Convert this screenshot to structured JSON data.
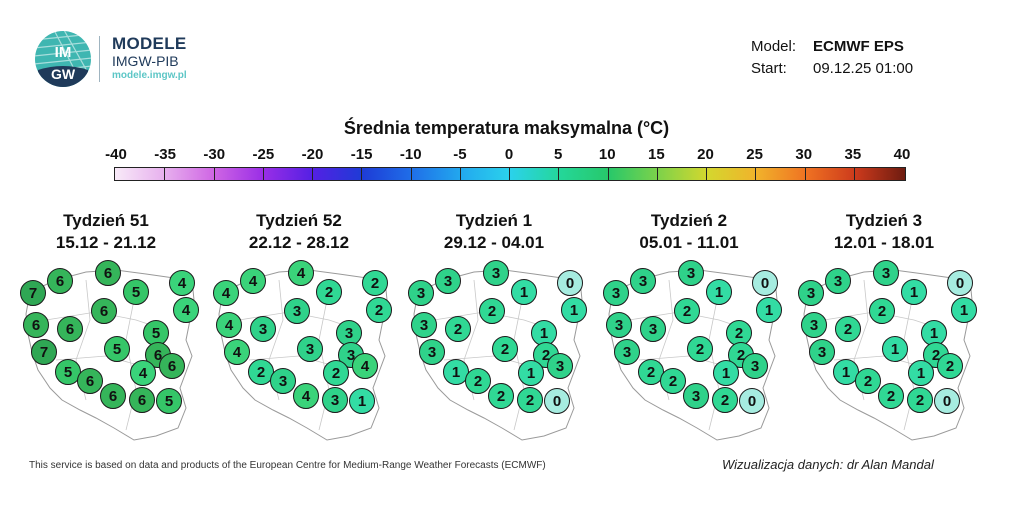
{
  "brand": {
    "name": "MODELE",
    "sub": "IMGW-PIB",
    "url": "modele.imgw.pl",
    "logo_text_top": "IM",
    "logo_text_bottom": "GW"
  },
  "meta": {
    "model_label": "Model:",
    "model_value": "ECMWF EPS",
    "start_label": "Start:",
    "start_value": "09.12.25 01:00"
  },
  "title": "Średnia temperatura maksymalna (°C)",
  "colorbar": {
    "ticks": [
      "-40",
      "-35",
      "-30",
      "-25",
      "-20",
      "-15",
      "-10",
      "-5",
      "0",
      "5",
      "10",
      "15",
      "20",
      "25",
      "30",
      "35",
      "40"
    ]
  },
  "weeks": [
    {
      "label": "Tydzień 51",
      "dates": "15.12 - 21.12",
      "values": [
        7,
        6,
        6,
        4,
        5,
        4,
        6,
        6,
        6,
        5,
        5,
        6,
        7,
        5,
        4,
        6,
        6,
        6,
        6,
        5
      ]
    },
    {
      "label": "Tydzień 52",
      "dates": "22.12 - 28.12",
      "values": [
        4,
        4,
        4,
        2,
        2,
        2,
        3,
        4,
        3,
        3,
        3,
        3,
        4,
        2,
        2,
        4,
        3,
        4,
        3,
        1
      ]
    },
    {
      "label": "Tydzień 1",
      "dates": "29.12 - 04.01",
      "values": [
        3,
        3,
        3,
        0,
        1,
        1,
        2,
        3,
        2,
        1,
        2,
        2,
        3,
        1,
        1,
        3,
        2,
        2,
        2,
        0
      ]
    },
    {
      "label": "Tydzień 2",
      "dates": "05.01 - 11.01",
      "values": [
        3,
        3,
        3,
        0,
        1,
        1,
        2,
        3,
        3,
        2,
        2,
        2,
        3,
        2,
        1,
        3,
        2,
        3,
        2,
        0
      ]
    },
    {
      "label": "Tydzień 3",
      "dates": "12.01 - 18.01",
      "values": [
        3,
        3,
        3,
        0,
        1,
        1,
        2,
        3,
        2,
        1,
        1,
        2,
        3,
        1,
        1,
        2,
        2,
        2,
        2,
        0
      ]
    }
  ],
  "footer": {
    "left": "This service is based on data and products of the European Centre for Medium-Range Weather Forecasts (ECMWF)",
    "right": "Wizualizacja danych: dr Alan Mandal"
  }
}
